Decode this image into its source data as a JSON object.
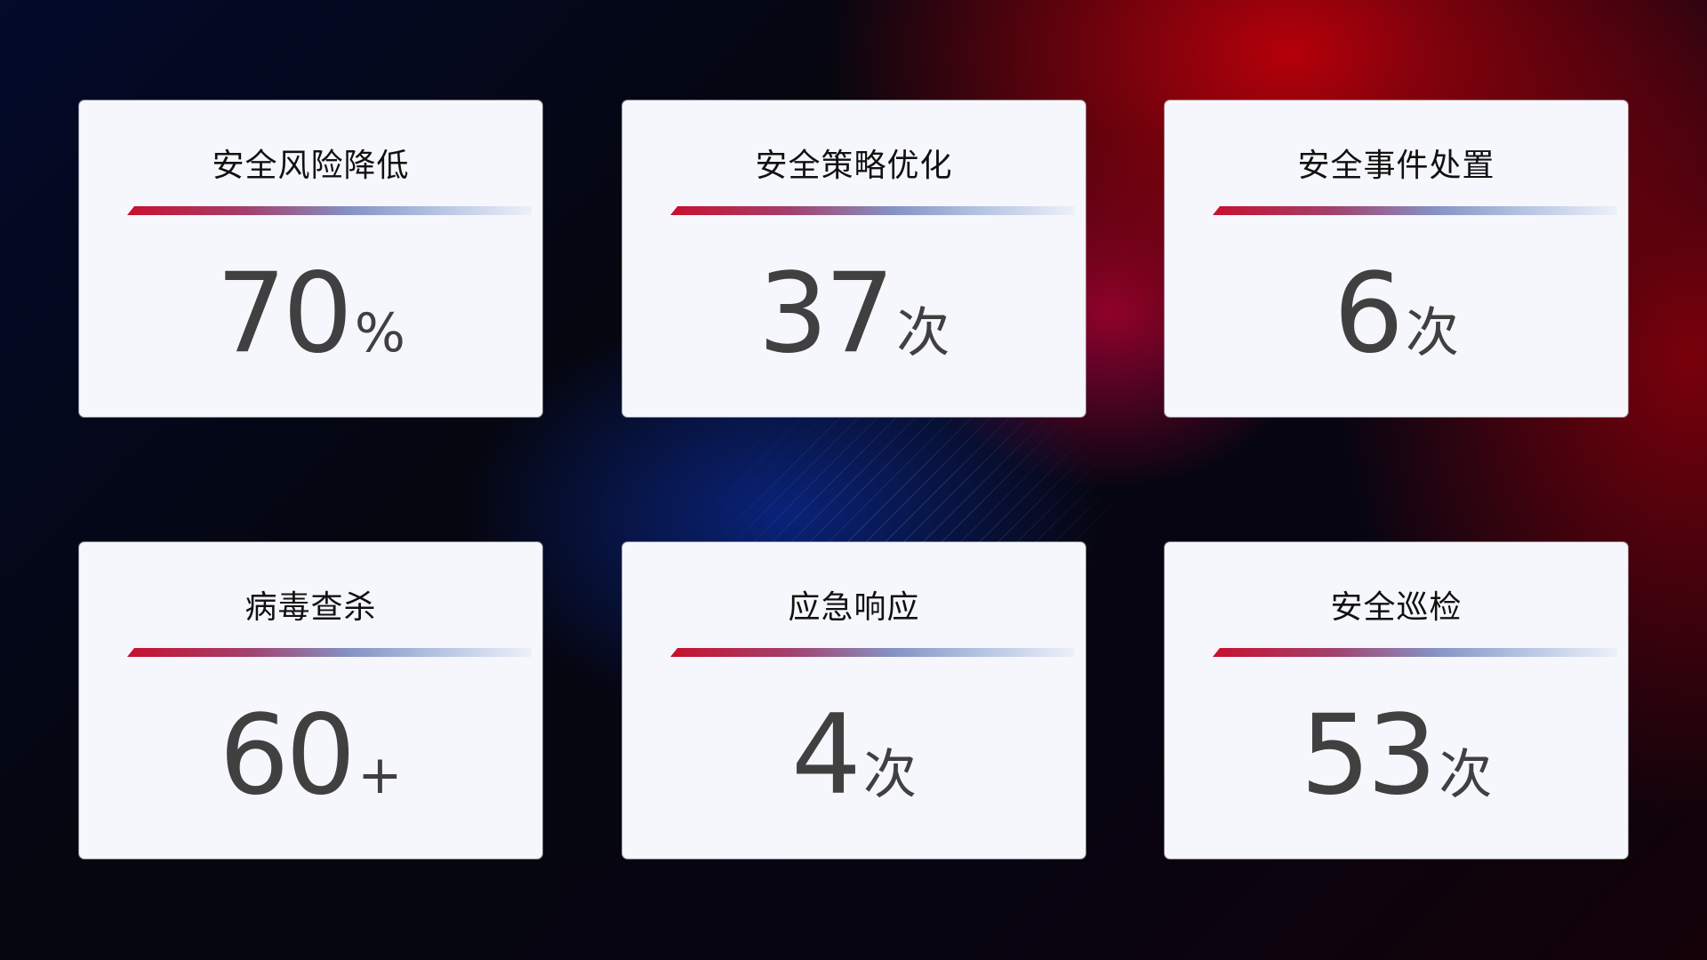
{
  "cards": [
    {
      "title": "安全风险降低",
      "value": "70",
      "unit": "%"
    },
    {
      "title": "安全策略优化",
      "value": "37",
      "unit": "次"
    },
    {
      "title": "安全事件处置",
      "value": "6",
      "unit": "次"
    },
    {
      "title": "病毒查杀",
      "value": "60",
      "unit": "+"
    },
    {
      "title": "应急响应",
      "value": "4",
      "unit": "次"
    },
    {
      "title": "安全巡检",
      "value": "53",
      "unit": "次"
    }
  ],
  "colors": {
    "accent_red": "#c8102e",
    "accent_blue": "#8592c4",
    "card_bg": "#f5f7fc",
    "value_text": "#404040"
  }
}
